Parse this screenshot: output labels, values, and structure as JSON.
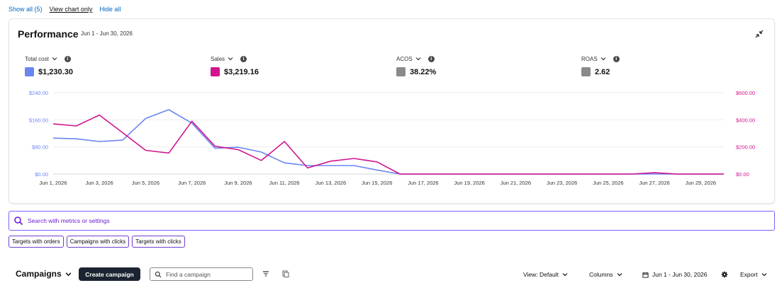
{
  "top_links": {
    "show_all": "Show all (5)",
    "view_chart_only": "View chart only",
    "hide_all": "Hide all"
  },
  "performance": {
    "title": "Performance",
    "date_range": "Jun 1 - Jun 30, 2026",
    "metrics": [
      {
        "label": "Total cost",
        "value": "$1,230.30",
        "color": "#6b86f0"
      },
      {
        "label": "Sales",
        "value": "$3,219.16",
        "color": "#d0158f"
      },
      {
        "label": "ACOS",
        "value": "38.22%",
        "color": "#8a8a8a"
      },
      {
        "label": "ROAS",
        "value": "2.62",
        "color": "#8a8a8a"
      }
    ]
  },
  "chart_data": {
    "type": "line",
    "x": [
      "Jun 1, 2026",
      "Jun 2, 2026",
      "Jun 3, 2026",
      "Jun 4, 2026",
      "Jun 5, 2026",
      "Jun 6, 2026",
      "Jun 7, 2026",
      "Jun 8, 2026",
      "Jun 9, 2026",
      "Jun 10, 2026",
      "Jun 11, 2026",
      "Jun 12, 2026",
      "Jun 13, 2026",
      "Jun 14, 2026",
      "Jun 15, 2026",
      "Jun 16, 2026",
      "Jun 17, 2026",
      "Jun 18, 2026",
      "Jun 19, 2026",
      "Jun 20, 2026",
      "Jun 21, 2026",
      "Jun 22, 2026",
      "Jun 23, 2026",
      "Jun 24, 2026",
      "Jun 25, 2026",
      "Jun 26, 2026",
      "Jun 27, 2026",
      "Jun 28, 2026",
      "Jun 29, 2026",
      "Jun 30, 2026"
    ],
    "tick_labels": [
      "Jun 1, 2026",
      "Jun 3, 2026",
      "Jun 5, 2026",
      "Jun 7, 2026",
      "Jun 9, 2026",
      "Jun 11, 2026",
      "Jun 13, 2026",
      "Jun 15, 2026",
      "Jun 17, 2026",
      "Jun 19, 2026",
      "Jun 21, 2026",
      "Jun 23, 2026",
      "Jun 25, 2026",
      "Jun 27, 2026",
      "Jun 29, 2026"
    ],
    "y_left": {
      "ticks": [
        "$0.00",
        "$80.00",
        "$160.00",
        "$240.00"
      ],
      "lim": [
        0,
        240
      ],
      "color": "#6b86f0"
    },
    "y_right": {
      "ticks": [
        "$0.00",
        "$200.00",
        "$400.00",
        "$600.00"
      ],
      "lim": [
        0,
        600
      ],
      "color": "#d0158f"
    },
    "series": [
      {
        "name": "Total cost",
        "axis": "left",
        "color": "#6b86f0",
        "values": [
          106,
          104,
          96,
          100,
          164,
          190,
          150,
          76,
          79,
          65,
          33,
          25,
          25,
          25,
          12,
          0,
          0,
          0,
          0,
          0,
          0,
          0,
          0,
          0,
          0,
          0,
          0,
          0,
          0,
          0
        ]
      },
      {
        "name": "Sales",
        "axis": "right",
        "color": "#d0158f",
        "values": [
          370,
          355,
          435,
          305,
          175,
          155,
          390,
          205,
          180,
          100,
          240,
          45,
          95,
          115,
          90,
          0,
          0,
          0,
          0,
          0,
          0,
          0,
          0,
          0,
          0,
          0,
          10,
          0,
          0,
          0
        ]
      }
    ],
    "grid": true,
    "legend": "top"
  },
  "search": {
    "placeholder": "Search with metrics or settings"
  },
  "chips": [
    "Targets with orders",
    "Campaigns with clicks",
    "Targets with clicks"
  ],
  "campaigns": {
    "title": "Campaigns",
    "create_label": "Create campaign",
    "find_placeholder": "Find a campaign",
    "view_label": "View: Default",
    "columns_label": "Columns",
    "date_range": "Jun 1 - Jun 30, 2026",
    "export_label": "Export"
  }
}
